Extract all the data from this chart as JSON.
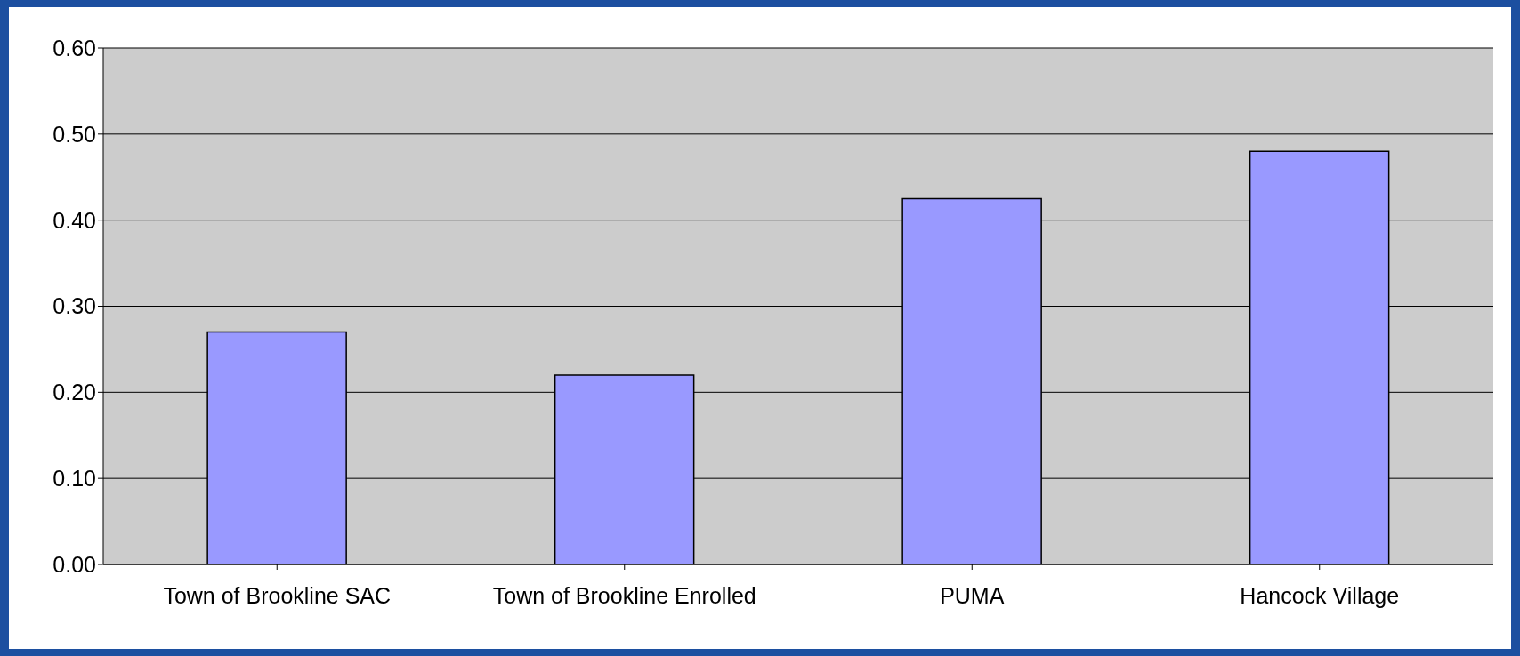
{
  "chart_data": {
    "type": "bar",
    "categories": [
      "Town of Brookline SAC",
      "Town of Brookline Enrolled",
      "PUMA",
      "Hancock Village"
    ],
    "values": [
      0.27,
      0.22,
      0.425,
      0.48
    ],
    "color": "#9999ff",
    "ylim": [
      0,
      0.6
    ],
    "yticks": [
      {
        "value": 0,
        "label": "0.00"
      },
      {
        "value": 0.1,
        "label": "0.10"
      },
      {
        "value": 0.2,
        "label": "0.20"
      },
      {
        "value": 0.3,
        "label": "0.30"
      },
      {
        "value": 0.4,
        "label": "0.40"
      },
      {
        "value": 0.5,
        "label": "0.50"
      },
      {
        "value": 0.6,
        "label": "0.60"
      }
    ],
    "grid": "y"
  }
}
